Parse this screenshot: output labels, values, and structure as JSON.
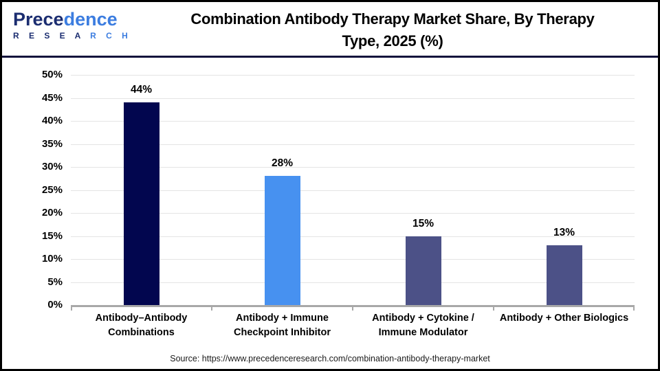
{
  "header": {
    "logo": {
      "name_part1": "Prece",
      "name_part2": "dence",
      "sub_part1": "R E S E A",
      "sub_part2": " R C H",
      "navy_color": "#1b2d70",
      "blue_color": "#3c7de0"
    },
    "title_line1": "Combination Antibody Therapy Market Share, By Therapy",
    "title_line2": "Type, 2025 (%)"
  },
  "chart_data": {
    "type": "bar",
    "title": "Combination Antibody Therapy Market Share, By Therapy Type, 2025 (%)",
    "categories": [
      "Antibody–Antibody Combinations",
      "Antibody + Immune Checkpoint Inhibitor",
      "Antibody + Cytokine / Immune Modulator",
      "Antibody + Other Biologics"
    ],
    "values": [
      44,
      28,
      15,
      13
    ],
    "data_labels": [
      "44%",
      "28%",
      "15%",
      "13%"
    ],
    "bar_colors": [
      "#02064f",
      "#4791f0",
      "#4c5187",
      "#4c5187"
    ],
    "ylim": [
      0,
      50
    ],
    "ytick_step": 5,
    "ytick_suffix": "%",
    "grid": true,
    "gridline_color": "#e4e4e4",
    "axis_color": "#a8a8a8",
    "legend": "none"
  },
  "footer": {
    "source": "Source: https://www.precedenceresearch.com/combination-antibody-therapy-market"
  }
}
